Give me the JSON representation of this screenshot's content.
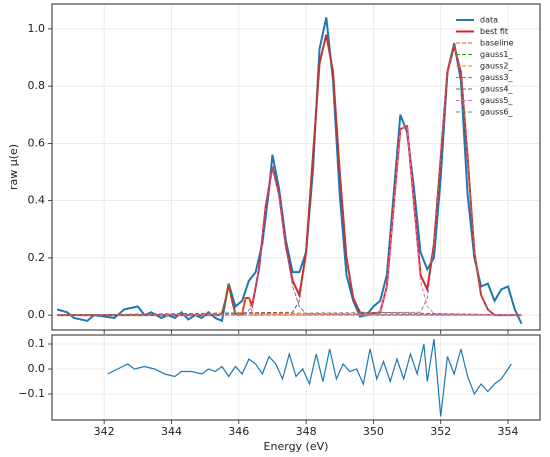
{
  "chart_data": [
    {
      "type": "line",
      "ylabel": "raw μ(e)",
      "grid": true,
      "legend": "upper right",
      "xlim": [
        340.45,
        354.95
      ],
      "ylim": [
        -0.052,
        1.087
      ],
      "xticks": [
        342,
        344,
        346,
        348,
        350,
        352,
        354
      ],
      "yticks": [
        {
          "value": 0,
          "label": "0.0"
        },
        {
          "value": 0.2,
          "label": "0.2"
        },
        {
          "value": 0.4,
          "label": "0.4"
        },
        {
          "value": 0.6,
          "label": "0.6"
        },
        {
          "value": 0.8,
          "label": "0.8"
        },
        {
          "value": 1,
          "label": "1.0"
        }
      ],
      "series": [
        {
          "name": "data",
          "color": "#1f77b4",
          "linestyle": "solid",
          "width": 2,
          "x": [
            340.6,
            340.9,
            341.1,
            341.5,
            341.7,
            342.0,
            342.3,
            342.6,
            343.0,
            343.2,
            343.4,
            343.7,
            343.9,
            344.1,
            344.3,
            344.5,
            344.7,
            344.9,
            345.1,
            345.3,
            345.5,
            345.7,
            345.9,
            346.1,
            346.3,
            346.5,
            346.7,
            346.9,
            347.0,
            347.2,
            347.4,
            347.6,
            347.8,
            348.0,
            348.2,
            348.4,
            348.6,
            348.8,
            349.0,
            349.2,
            349.4,
            349.6,
            349.8,
            350.0,
            350.2,
            350.4,
            350.6,
            350.8,
            351.0,
            351.2,
            351.4,
            351.6,
            351.8,
            352.0,
            352.2,
            352.4,
            352.6,
            352.8,
            353.0,
            353.2,
            353.4,
            353.6,
            353.8,
            354.0,
            354.2,
            354.4
          ],
          "values": [
            0.02,
            0.01,
            -0.01,
            -0.02,
            0.0,
            -0.005,
            -0.01,
            0.02,
            0.03,
            0.0,
            0.01,
            -0.01,
            0.0,
            -0.01,
            0.01,
            -0.015,
            0.0,
            -0.01,
            0.01,
            -0.01,
            -0.02,
            0.11,
            0.03,
            0.05,
            0.12,
            0.15,
            0.25,
            0.44,
            0.56,
            0.44,
            0.26,
            0.15,
            0.15,
            0.22,
            0.5,
            0.93,
            1.04,
            0.82,
            0.42,
            0.14,
            0.05,
            -0.005,
            0.0,
            0.03,
            0.05,
            0.14,
            0.42,
            0.7,
            0.64,
            0.45,
            0.22,
            0.16,
            0.2,
            0.48,
            0.85,
            0.95,
            0.82,
            0.42,
            0.2,
            0.1,
            0.11,
            0.05,
            0.09,
            0.1,
            0.02,
            -0.03
          ]
        },
        {
          "name": "best fit",
          "color": "#d62728",
          "linestyle": "solid",
          "width": 2,
          "x": [
            340.6,
            345.4,
            345.5,
            345.6,
            345.7,
            345.8,
            345.9,
            346.0,
            346.1,
            346.2,
            346.3,
            346.4,
            346.6,
            346.8,
            347.0,
            347.2,
            347.4,
            347.6,
            347.8,
            348.0,
            348.2,
            348.4,
            348.6,
            348.8,
            349.0,
            349.2,
            349.4,
            349.6,
            349.8,
            350.2,
            350.4,
            350.6,
            350.8,
            351.0,
            351.2,
            351.4,
            351.6,
            351.8,
            352.0,
            352.2,
            352.4,
            352.6,
            352.8,
            353.0,
            353.2,
            353.4,
            353.6,
            354.4
          ],
          "values": [
            0,
            0,
            0.005,
            0.05,
            0.11,
            0.05,
            0.005,
            0,
            0.004,
            0.06,
            0.06,
            0.033,
            0.16,
            0.38,
            0.52,
            0.42,
            0.24,
            0.12,
            0.07,
            0.22,
            0.55,
            0.88,
            0.98,
            0.85,
            0.5,
            0.2,
            0.06,
            0.01,
            0,
            0.01,
            0.1,
            0.38,
            0.65,
            0.66,
            0.4,
            0.14,
            0.09,
            0.25,
            0.55,
            0.85,
            0.94,
            0.85,
            0.55,
            0.22,
            0.07,
            0.02,
            0,
            0
          ]
        },
        {
          "name": "baseline",
          "color": "#e05a5a",
          "linestyle": "dashed",
          "width": 1,
          "x": [
            340.6,
            354.4
          ],
          "values": [
            0,
            0
          ]
        },
        {
          "name": "gauss1_",
          "color": "#2ca02c",
          "linestyle": "dashed",
          "width": 1,
          "x": [
            340.6,
            345.4,
            345.5,
            345.6,
            345.7,
            345.8,
            345.9,
            346.0,
            354.4
          ],
          "values": [
            0,
            0,
            0.005,
            0.05,
            0.11,
            0.05,
            0.005,
            0,
            0
          ]
        },
        {
          "name": "gauss2_",
          "color": "#ff7f0e",
          "linestyle": "dashed",
          "width": 1,
          "x": [
            340.6,
            346.1,
            346.2,
            346.3,
            346.4,
            354.4
          ],
          "values": [
            0,
            0.004,
            0.06,
            0.06,
            0.003,
            0
          ]
        },
        {
          "name": "gauss3_",
          "color": "#9467bd",
          "linestyle": "dashed",
          "width": 1,
          "x": [
            340.6,
            346.2,
            346.4,
            346.6,
            346.8,
            347.0,
            347.2,
            347.4,
            347.6,
            347.8,
            348.0,
            354.4
          ],
          "values": [
            0,
            0.005,
            0.03,
            0.16,
            0.38,
            0.52,
            0.42,
            0.24,
            0.1,
            0.03,
            0.005,
            0
          ]
        },
        {
          "name": "gauss4_",
          "color": "#8c564b",
          "linestyle": "dashed",
          "width": 1,
          "x": [
            340.6,
            347.6,
            347.8,
            348.0,
            348.2,
            348.4,
            348.6,
            348.8,
            349.0,
            349.2,
            349.4,
            349.6,
            354.4
          ],
          "values": [
            0,
            0.01,
            0.05,
            0.21,
            0.55,
            0.88,
            0.98,
            0.85,
            0.5,
            0.2,
            0.06,
            0.01,
            0
          ]
        },
        {
          "name": "gauss5_",
          "color": "#e377c2",
          "linestyle": "dashed",
          "width": 1,
          "x": [
            340.6,
            350.0,
            350.2,
            350.4,
            350.6,
            350.8,
            351.0,
            351.2,
            351.4,
            351.6,
            351.8,
            354.4
          ],
          "values": [
            0,
            0,
            0.01,
            0.1,
            0.38,
            0.65,
            0.66,
            0.4,
            0.12,
            0.03,
            0.005,
            0
          ]
        },
        {
          "name": "gauss6_",
          "color": "#7f7f7f",
          "linestyle": "dashed",
          "width": 1,
          "x": [
            340.6,
            351.4,
            351.6,
            351.8,
            352.0,
            352.2,
            352.4,
            352.6,
            352.8,
            353.0,
            353.2,
            353.4,
            353.6,
            354.4
          ],
          "values": [
            0,
            0.01,
            0.06,
            0.24,
            0.55,
            0.85,
            0.94,
            0.85,
            0.55,
            0.22,
            0.07,
            0.02,
            0,
            0
          ]
        }
      ]
    },
    {
      "type": "line",
      "xlabel": "Energy (eV)",
      "grid": true,
      "color": "#1f77b4",
      "xlim": [
        340.45,
        354.95
      ],
      "ylim": [
        -0.204,
        0.136
      ],
      "xticks": [
        342,
        344,
        346,
        348,
        350,
        352,
        354
      ],
      "yticks": [
        0.1,
        {
          "value": 0,
          "label": "0.0"
        },
        {
          "value": -0.1,
          "label": "−0.1"
        }
      ],
      "x": [
        342.1,
        342.4,
        342.7,
        342.9,
        343.2,
        343.5,
        343.8,
        344.1,
        344.3,
        344.6,
        344.9,
        345.1,
        345.3,
        345.5,
        345.7,
        345.9,
        346.1,
        346.3,
        346.5,
        346.7,
        346.9,
        347.1,
        347.3,
        347.5,
        347.7,
        347.9,
        348.1,
        348.3,
        348.5,
        348.7,
        348.9,
        349.1,
        349.3,
        349.5,
        349.7,
        349.9,
        350.1,
        350.3,
        350.5,
        350.7,
        350.9,
        351.1,
        351.3,
        351.5,
        351.6,
        351.8,
        352.0,
        352.2,
        352.4,
        352.6,
        352.8,
        353.0,
        353.2,
        353.4,
        353.6,
        353.8,
        354.0,
        354.1
      ],
      "values": [
        -0.02,
        0.0,
        0.02,
        0.0,
        0.01,
        0.0,
        -0.02,
        -0.03,
        -0.01,
        -0.01,
        -0.02,
        0.0,
        -0.01,
        0.01,
        -0.03,
        0.01,
        -0.02,
        0.04,
        0.02,
        -0.02,
        0.05,
        0.02,
        -0.04,
        0.06,
        -0.03,
        0.0,
        -0.06,
        0.06,
        -0.05,
        0.08,
        -0.04,
        0.02,
        -0.01,
        0.0,
        -0.06,
        0.08,
        -0.04,
        0.03,
        -0.05,
        0.04,
        -0.04,
        0.06,
        -0.02,
        0.1,
        -0.05,
        0.12,
        -0.19,
        0.05,
        -0.02,
        0.08,
        -0.03,
        -0.1,
        -0.06,
        -0.09,
        -0.06,
        -0.04,
        0.0,
        0.02
      ]
    }
  ]
}
